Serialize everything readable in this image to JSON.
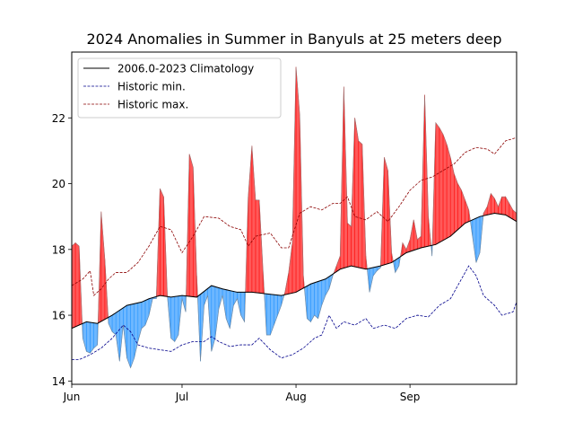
{
  "chart_data": {
    "type": "line",
    "title": "2024 Anomalies in Summer in Banyuls at 25 meters deep",
    "xlabel": "",
    "ylabel": "",
    "x_unit": "day",
    "x_start": "2024-06-01",
    "xlim": [
      "2024-06-01",
      "2024-09-30"
    ],
    "ylim": [
      13.9,
      24.0
    ],
    "xticks": [
      {
        "label": "Jun",
        "date": "2024-06-01"
      },
      {
        "label": "Jul",
        "date": "2024-07-01"
      },
      {
        "label": "Aug",
        "date": "2024-08-01"
      },
      {
        "label": "Sep",
        "date": "2024-09-01"
      }
    ],
    "yticks": [
      14,
      16,
      18,
      20,
      22
    ],
    "grid": false,
    "legend_position": "upper-left",
    "colors": {
      "above": "#ff0000",
      "below": "#1e90ff",
      "climatology": "#000000",
      "hist_min": "#00008b",
      "hist_max": "#8b0000"
    },
    "series": [
      {
        "name": "2006.0-2023 Climatology",
        "style": "solid",
        "color": "#000000",
        "points": [
          [
            "2024-06-01",
            15.6
          ],
          [
            "2024-06-05",
            15.8
          ],
          [
            "2024-06-08",
            15.75
          ],
          [
            "2024-06-12",
            16.0
          ],
          [
            "2024-06-16",
            16.3
          ],
          [
            "2024-06-20",
            16.4
          ],
          [
            "2024-06-22",
            16.5
          ],
          [
            "2024-06-25",
            16.6
          ],
          [
            "2024-06-28",
            16.55
          ],
          [
            "2024-07-01",
            16.6
          ],
          [
            "2024-07-05",
            16.55
          ],
          [
            "2024-07-09",
            16.9
          ],
          [
            "2024-07-12",
            16.8
          ],
          [
            "2024-07-16",
            16.7
          ],
          [
            "2024-07-20",
            16.7
          ],
          [
            "2024-07-24",
            16.65
          ],
          [
            "2024-07-28",
            16.6
          ],
          [
            "2024-08-01",
            16.7
          ],
          [
            "2024-08-05",
            16.95
          ],
          [
            "2024-08-09",
            17.1
          ],
          [
            "2024-08-13",
            17.4
          ],
          [
            "2024-08-16",
            17.5
          ],
          [
            "2024-08-20",
            17.4
          ],
          [
            "2024-08-24",
            17.5
          ],
          [
            "2024-08-27",
            17.6
          ],
          [
            "2024-08-31",
            17.9
          ],
          [
            "2024-09-04",
            18.05
          ],
          [
            "2024-09-08",
            18.15
          ],
          [
            "2024-09-12",
            18.4
          ],
          [
            "2024-09-16",
            18.8
          ],
          [
            "2024-09-20",
            19.0
          ],
          [
            "2024-09-24",
            19.1
          ],
          [
            "2024-09-27",
            19.05
          ],
          [
            "2024-09-30",
            18.85
          ]
        ]
      },
      {
        "name": "Historic min.",
        "style": "dashed",
        "color": "#00008b",
        "points": [
          [
            "2024-06-01",
            14.65
          ],
          [
            "2024-06-03",
            14.65
          ],
          [
            "2024-06-06",
            14.8
          ],
          [
            "2024-06-09",
            15.0
          ],
          [
            "2024-06-12",
            15.3
          ],
          [
            "2024-06-15",
            15.7
          ],
          [
            "2024-06-17",
            15.5
          ],
          [
            "2024-06-19",
            15.1
          ],
          [
            "2024-06-22",
            15.0
          ],
          [
            "2024-06-25",
            14.95
          ],
          [
            "2024-06-28",
            14.9
          ],
          [
            "2024-07-01",
            15.1
          ],
          [
            "2024-07-04",
            15.2
          ],
          [
            "2024-07-07",
            15.2
          ],
          [
            "2024-07-09",
            15.35
          ],
          [
            "2024-07-11",
            15.2
          ],
          [
            "2024-07-14",
            15.05
          ],
          [
            "2024-07-17",
            15.1
          ],
          [
            "2024-07-20",
            15.1
          ],
          [
            "2024-07-22",
            15.3
          ],
          [
            "2024-07-25",
            14.95
          ],
          [
            "2024-07-28",
            14.7
          ],
          [
            "2024-07-31",
            14.8
          ],
          [
            "2024-08-03",
            15.0
          ],
          [
            "2024-08-06",
            15.3
          ],
          [
            "2024-08-08",
            15.4
          ],
          [
            "2024-08-10",
            16.0
          ],
          [
            "2024-08-12",
            15.6
          ],
          [
            "2024-08-14",
            15.8
          ],
          [
            "2024-08-17",
            15.7
          ],
          [
            "2024-08-20",
            15.9
          ],
          [
            "2024-08-22",
            15.6
          ],
          [
            "2024-08-25",
            15.7
          ],
          [
            "2024-08-28",
            15.6
          ],
          [
            "2024-08-31",
            15.9
          ],
          [
            "2024-09-03",
            16.0
          ],
          [
            "2024-09-06",
            15.95
          ],
          [
            "2024-09-09",
            16.3
          ],
          [
            "2024-09-12",
            16.5
          ],
          [
            "2024-09-15",
            17.1
          ],
          [
            "2024-09-17",
            17.5
          ],
          [
            "2024-09-19",
            17.2
          ],
          [
            "2024-09-21",
            16.6
          ],
          [
            "2024-09-24",
            16.3
          ],
          [
            "2024-09-26",
            16.0
          ],
          [
            "2024-09-29",
            16.1
          ],
          [
            "2024-09-30",
            16.4
          ]
        ]
      },
      {
        "name": "Historic max.",
        "style": "dashed",
        "color": "#8b0000",
        "points": [
          [
            "2024-06-01",
            16.9
          ],
          [
            "2024-06-04",
            17.1
          ],
          [
            "2024-06-06",
            17.35
          ],
          [
            "2024-06-07",
            16.6
          ],
          [
            "2024-06-09",
            16.8
          ],
          [
            "2024-06-11",
            17.1
          ],
          [
            "2024-06-13",
            17.3
          ],
          [
            "2024-06-16",
            17.3
          ],
          [
            "2024-06-19",
            17.6
          ],
          [
            "2024-06-22",
            18.1
          ],
          [
            "2024-06-25",
            18.7
          ],
          [
            "2024-06-28",
            18.6
          ],
          [
            "2024-07-01",
            17.9
          ],
          [
            "2024-07-04",
            18.4
          ],
          [
            "2024-07-07",
            19.0
          ],
          [
            "2024-07-11",
            18.95
          ],
          [
            "2024-07-14",
            18.7
          ],
          [
            "2024-07-17",
            18.6
          ],
          [
            "2024-07-19",
            18.1
          ],
          [
            "2024-07-21",
            18.4
          ],
          [
            "2024-07-25",
            18.5
          ],
          [
            "2024-07-28",
            18.05
          ],
          [
            "2024-07-30",
            18.05
          ],
          [
            "2024-08-02",
            19.1
          ],
          [
            "2024-08-05",
            19.3
          ],
          [
            "2024-08-08",
            19.2
          ],
          [
            "2024-08-11",
            19.4
          ],
          [
            "2024-08-13",
            19.4
          ],
          [
            "2024-08-15",
            19.6
          ],
          [
            "2024-08-17",
            19.0
          ],
          [
            "2024-08-20",
            18.9
          ],
          [
            "2024-08-23",
            19.15
          ],
          [
            "2024-08-26",
            18.85
          ],
          [
            "2024-08-29",
            19.3
          ],
          [
            "2024-09-01",
            19.8
          ],
          [
            "2024-09-04",
            20.1
          ],
          [
            "2024-09-07",
            20.2
          ],
          [
            "2024-09-10",
            20.4
          ],
          [
            "2024-09-13",
            20.6
          ],
          [
            "2024-09-16",
            20.95
          ],
          [
            "2024-09-19",
            21.1
          ],
          [
            "2024-09-22",
            21.05
          ],
          [
            "2024-09-24",
            20.9
          ],
          [
            "2024-09-27",
            21.3
          ],
          [
            "2024-09-30",
            21.4
          ]
        ]
      },
      {
        "name": "",
        "style": "observed",
        "color": "#808080",
        "points": [
          [
            "2024-06-01",
            18.1
          ],
          [
            "2024-06-02",
            18.2
          ],
          [
            "2024-06-03",
            18.1
          ],
          [
            "2024-06-04",
            15.3
          ],
          [
            "2024-06-05",
            14.9
          ],
          [
            "2024-06-06",
            14.85
          ],
          [
            "2024-06-07",
            15.0
          ],
          [
            "2024-06-08",
            15.1
          ],
          [
            "2024-06-09",
            19.15
          ],
          [
            "2024-06-10",
            17.7
          ],
          [
            "2024-06-11",
            15.75
          ],
          [
            "2024-06-12",
            15.5
          ],
          [
            "2024-06-13",
            15.4
          ],
          [
            "2024-06-14",
            14.6
          ],
          [
            "2024-06-15",
            15.7
          ],
          [
            "2024-06-16",
            14.7
          ],
          [
            "2024-06-17",
            14.4
          ],
          [
            "2024-06-18",
            14.7
          ],
          [
            "2024-06-19",
            15.2
          ],
          [
            "2024-06-20",
            15.6
          ],
          [
            "2024-06-21",
            15.7
          ],
          [
            "2024-06-22",
            16.0
          ],
          [
            "2024-06-23",
            16.5
          ],
          [
            "2024-06-24",
            16.5
          ],
          [
            "2024-06-25",
            19.85
          ],
          [
            "2024-06-26",
            19.6
          ],
          [
            "2024-06-27",
            16.6
          ],
          [
            "2024-06-28",
            15.3
          ],
          [
            "2024-06-29",
            15.2
          ],
          [
            "2024-06-30",
            15.4
          ],
          [
            "2024-07-01",
            16.5
          ],
          [
            "2024-07-02",
            16.1
          ],
          [
            "2024-07-03",
            20.9
          ],
          [
            "2024-07-04",
            20.5
          ],
          [
            "2024-07-05",
            17.2
          ],
          [
            "2024-07-06",
            14.6
          ],
          [
            "2024-07-07",
            16.3
          ],
          [
            "2024-07-08",
            16.6
          ],
          [
            "2024-07-09",
            14.9
          ],
          [
            "2024-07-10",
            15.3
          ],
          [
            "2024-07-11",
            16.2
          ],
          [
            "2024-07-12",
            16.6
          ],
          [
            "2024-07-13",
            15.9
          ],
          [
            "2024-07-14",
            15.6
          ],
          [
            "2024-07-15",
            16.3
          ],
          [
            "2024-07-16",
            16.5
          ],
          [
            "2024-07-17",
            16.0
          ],
          [
            "2024-07-18",
            15.8
          ],
          [
            "2024-07-19",
            19.6
          ],
          [
            "2024-07-20",
            21.15
          ],
          [
            "2024-07-21",
            19.5
          ],
          [
            "2024-07-22",
            19.5
          ],
          [
            "2024-07-23",
            17.4
          ],
          [
            "2024-07-24",
            15.4
          ],
          [
            "2024-07-25",
            15.4
          ],
          [
            "2024-07-26",
            15.7
          ],
          [
            "2024-07-27",
            16.0
          ],
          [
            "2024-07-28",
            16.3
          ],
          [
            "2024-07-29",
            16.7
          ],
          [
            "2024-07-30",
            17.3
          ],
          [
            "2024-07-31",
            18.2
          ],
          [
            "2024-08-01",
            23.55
          ],
          [
            "2024-08-02",
            22.1
          ],
          [
            "2024-08-03",
            17.2
          ],
          [
            "2024-08-04",
            15.9
          ],
          [
            "2024-08-05",
            15.8
          ],
          [
            "2024-08-06",
            16.0
          ],
          [
            "2024-08-07",
            15.9
          ],
          [
            "2024-08-08",
            16.3
          ],
          [
            "2024-08-09",
            16.6
          ],
          [
            "2024-08-10",
            16.8
          ],
          [
            "2024-08-11",
            17.2
          ],
          [
            "2024-08-12",
            17.5
          ],
          [
            "2024-08-13",
            17.8
          ],
          [
            "2024-08-14",
            22.95
          ],
          [
            "2024-08-15",
            18.8
          ],
          [
            "2024-08-16",
            18.7
          ],
          [
            "2024-08-17",
            22.0
          ],
          [
            "2024-08-18",
            21.3
          ],
          [
            "2024-08-19",
            21.2
          ],
          [
            "2024-08-20",
            17.8
          ],
          [
            "2024-08-21",
            16.7
          ],
          [
            "2024-08-22",
            17.2
          ],
          [
            "2024-08-23",
            17.35
          ],
          [
            "2024-08-24",
            17.45
          ],
          [
            "2024-08-25",
            20.8
          ],
          [
            "2024-08-26",
            20.4
          ],
          [
            "2024-08-27",
            17.9
          ],
          [
            "2024-08-28",
            17.3
          ],
          [
            "2024-08-29",
            17.5
          ],
          [
            "2024-08-30",
            18.2
          ],
          [
            "2024-08-31",
            18.0
          ],
          [
            "2024-09-01",
            18.3
          ],
          [
            "2024-09-02",
            18.9
          ],
          [
            "2024-09-03",
            18.3
          ],
          [
            "2024-09-04",
            18.4
          ],
          [
            "2024-09-05",
            22.7
          ],
          [
            "2024-09-06",
            19.0
          ],
          [
            "2024-09-07",
            17.8
          ],
          [
            "2024-09-08",
            21.85
          ],
          [
            "2024-09-09",
            21.7
          ],
          [
            "2024-09-10",
            21.5
          ],
          [
            "2024-09-11",
            21.2
          ],
          [
            "2024-09-12",
            20.8
          ],
          [
            "2024-09-13",
            20.3
          ],
          [
            "2024-09-14",
            20.0
          ],
          [
            "2024-09-15",
            19.8
          ],
          [
            "2024-09-16",
            19.5
          ],
          [
            "2024-09-17",
            19.2
          ],
          [
            "2024-09-18",
            18.4
          ],
          [
            "2024-09-19",
            17.6
          ],
          [
            "2024-09-20",
            17.9
          ],
          [
            "2024-09-21",
            19.1
          ],
          [
            "2024-09-22",
            19.3
          ],
          [
            "2024-09-23",
            19.7
          ],
          [
            "2024-09-24",
            19.55
          ],
          [
            "2024-09-25",
            19.3
          ],
          [
            "2024-09-26",
            19.6
          ],
          [
            "2024-09-27",
            19.6
          ],
          [
            "2024-09-28",
            19.4
          ],
          [
            "2024-09-29",
            19.2
          ],
          [
            "2024-09-30",
            19.1
          ]
        ]
      }
    ]
  }
}
